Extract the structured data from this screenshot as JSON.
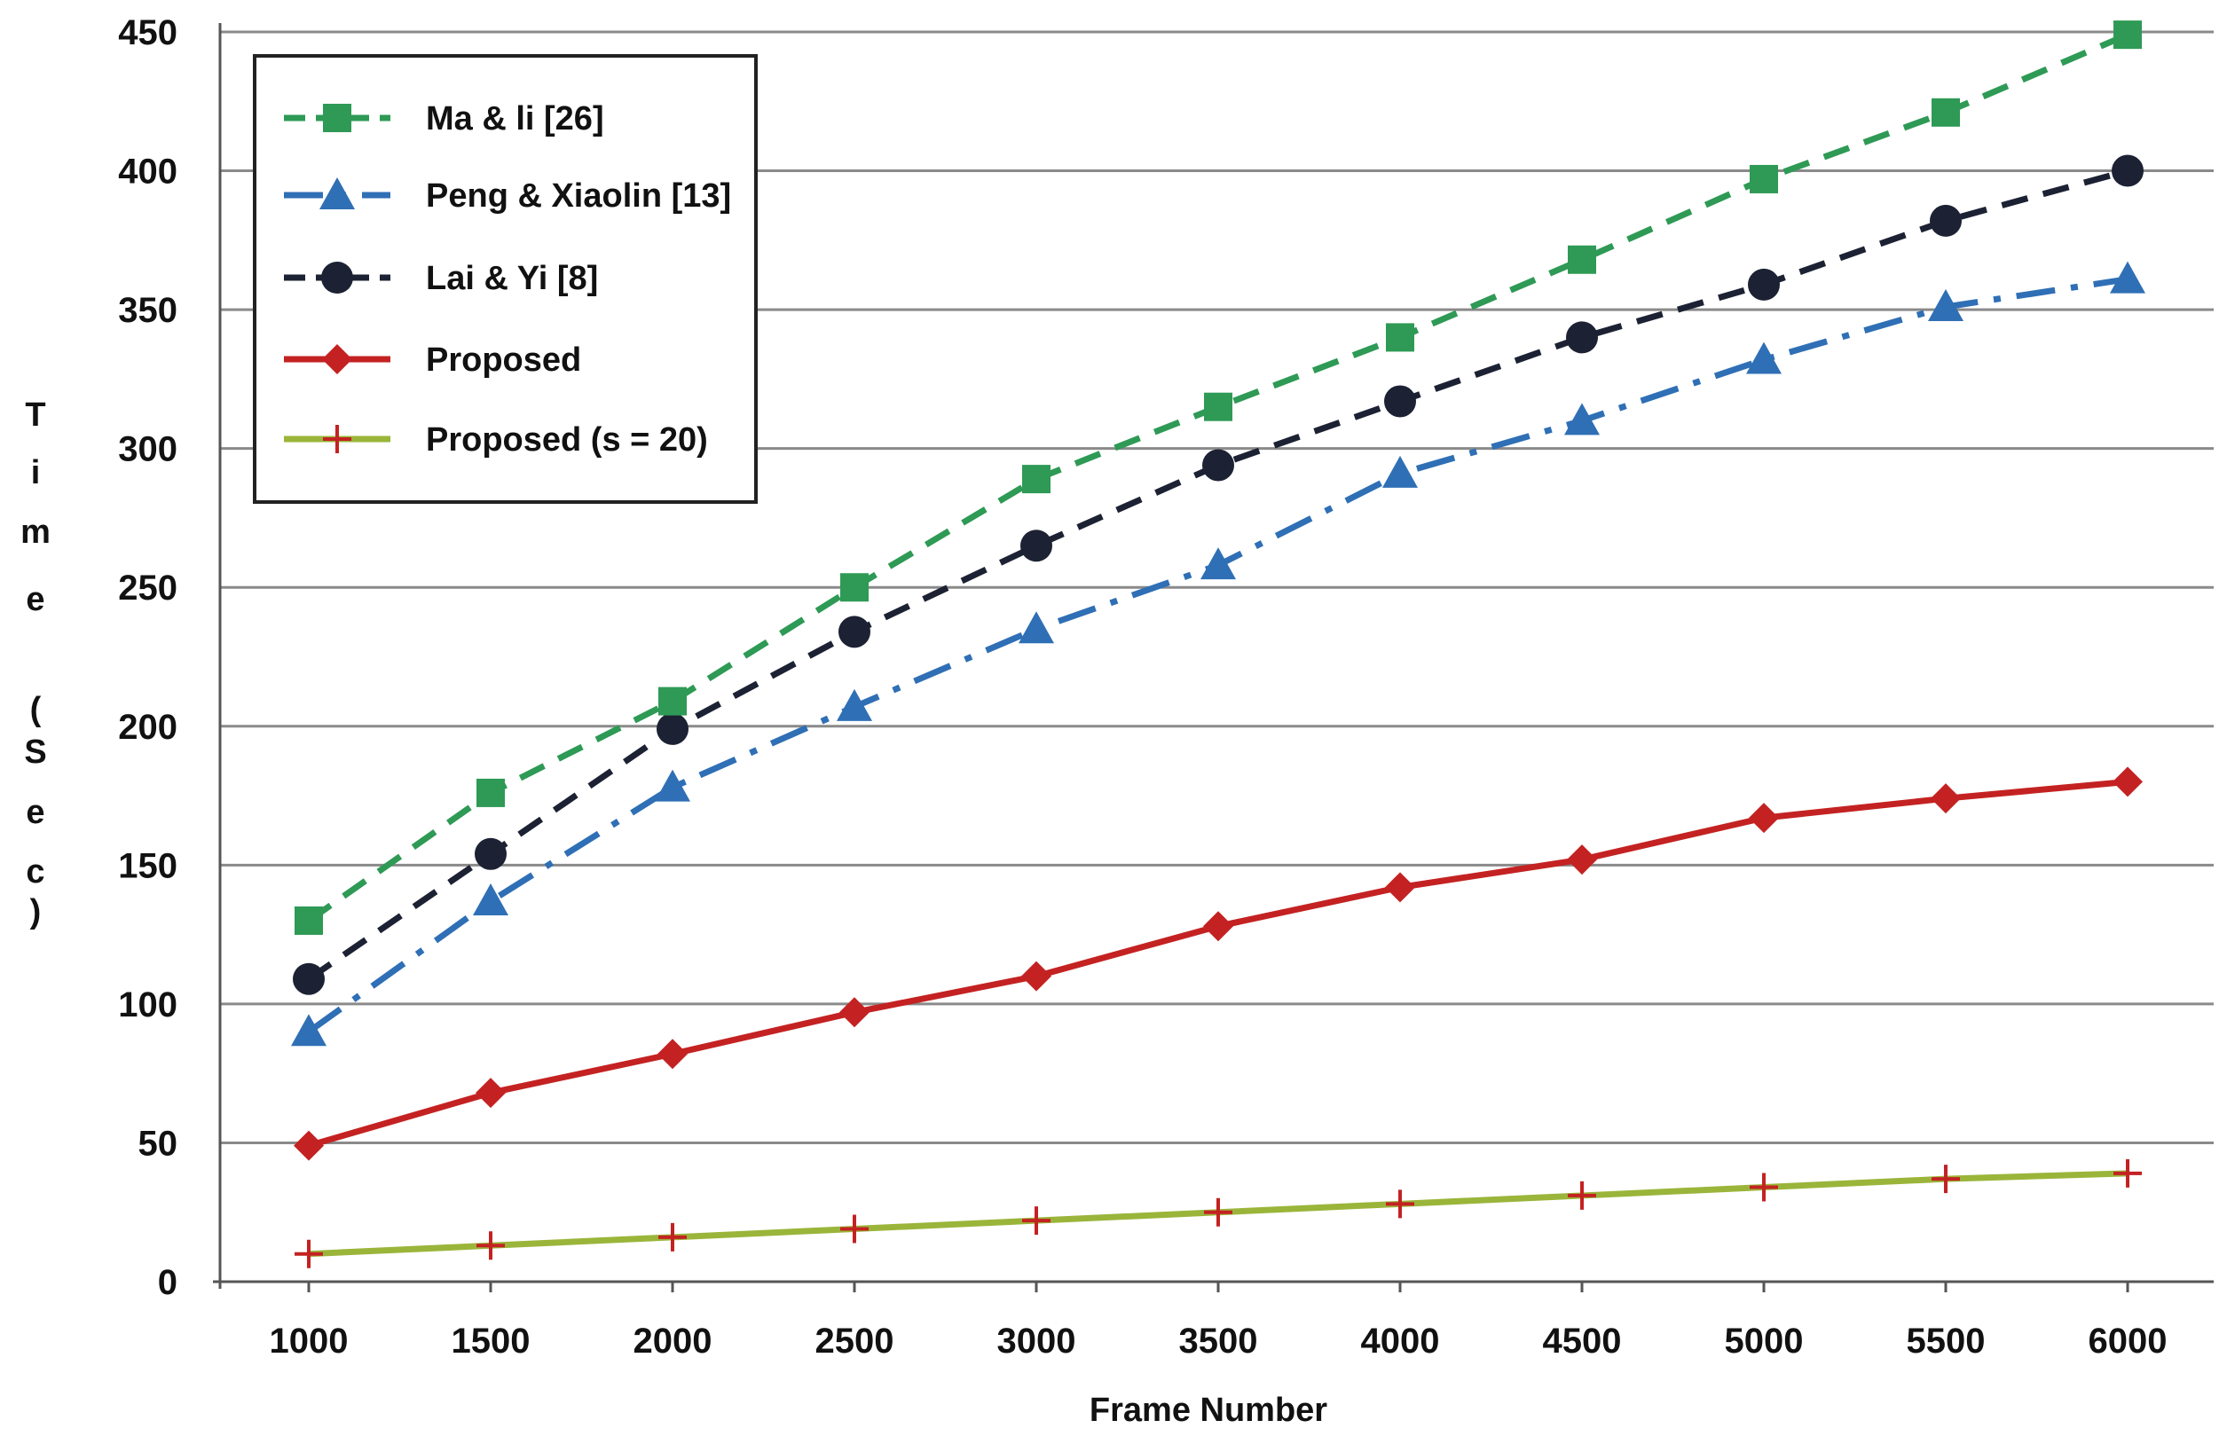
{
  "chart_data": {
    "type": "line",
    "title": "",
    "xlabel": "Frame Number",
    "ylabel": "Time (sec)",
    "ylabel_chars": [
      "T",
      "i",
      "m",
      "e",
      "(",
      "S",
      "e",
      "c",
      ")"
    ],
    "categories": [
      1000,
      1500,
      2000,
      2500,
      3000,
      3500,
      4000,
      4500,
      5000,
      5500,
      6000
    ],
    "ylim": [
      0,
      450
    ],
    "yticks": [
      0,
      50,
      100,
      150,
      200,
      250,
      300,
      350,
      400,
      450
    ],
    "grid": true,
    "legend_position": "top-left",
    "series": [
      {
        "name": "Ma & li [26]",
        "color": "#2e9a55",
        "line": "dashed",
        "marker": "square",
        "values": [
          130,
          176,
          209,
          250,
          289,
          315,
          340,
          368,
          397,
          421,
          449
        ]
      },
      {
        "name": "Peng & Xiaolin [13]",
        "color": "#2f6fb5",
        "line": "dashdot",
        "marker": "triangle",
        "values": [
          90,
          137,
          178,
          207,
          235,
          258,
          291,
          310,
          332,
          351,
          361
        ]
      },
      {
        "name": "Lai & Yi [8]",
        "color": "#1c2233",
        "line": "dashed",
        "marker": "circle",
        "values": [
          109,
          154,
          199,
          234,
          265,
          294,
          317,
          340,
          359,
          382,
          400
        ]
      },
      {
        "name": "Proposed",
        "color": "#c42222",
        "line": "solid",
        "marker": "diamond",
        "values": [
          49,
          68,
          82,
          97,
          110,
          128,
          142,
          152,
          167,
          174,
          180
        ]
      },
      {
        "name": "Proposed (s = 20)",
        "color": "#9ab53a",
        "marker_color": "#c42222",
        "line": "solid",
        "marker": "plus",
        "values": [
          10,
          13,
          16,
          19,
          22,
          25,
          28,
          31,
          34,
          37,
          39
        ]
      }
    ]
  }
}
